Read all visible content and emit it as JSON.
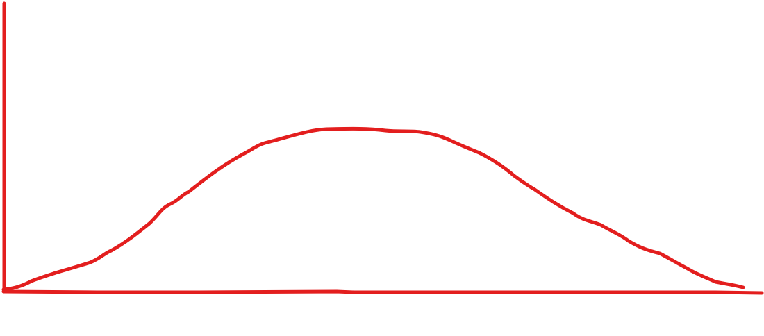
{
  "diagram": {
    "kind": "hand-drawn bell curve with axes",
    "labels": [],
    "colors": {
      "stroke": "#e31e1e",
      "background": "#ffffff"
    }
  }
}
